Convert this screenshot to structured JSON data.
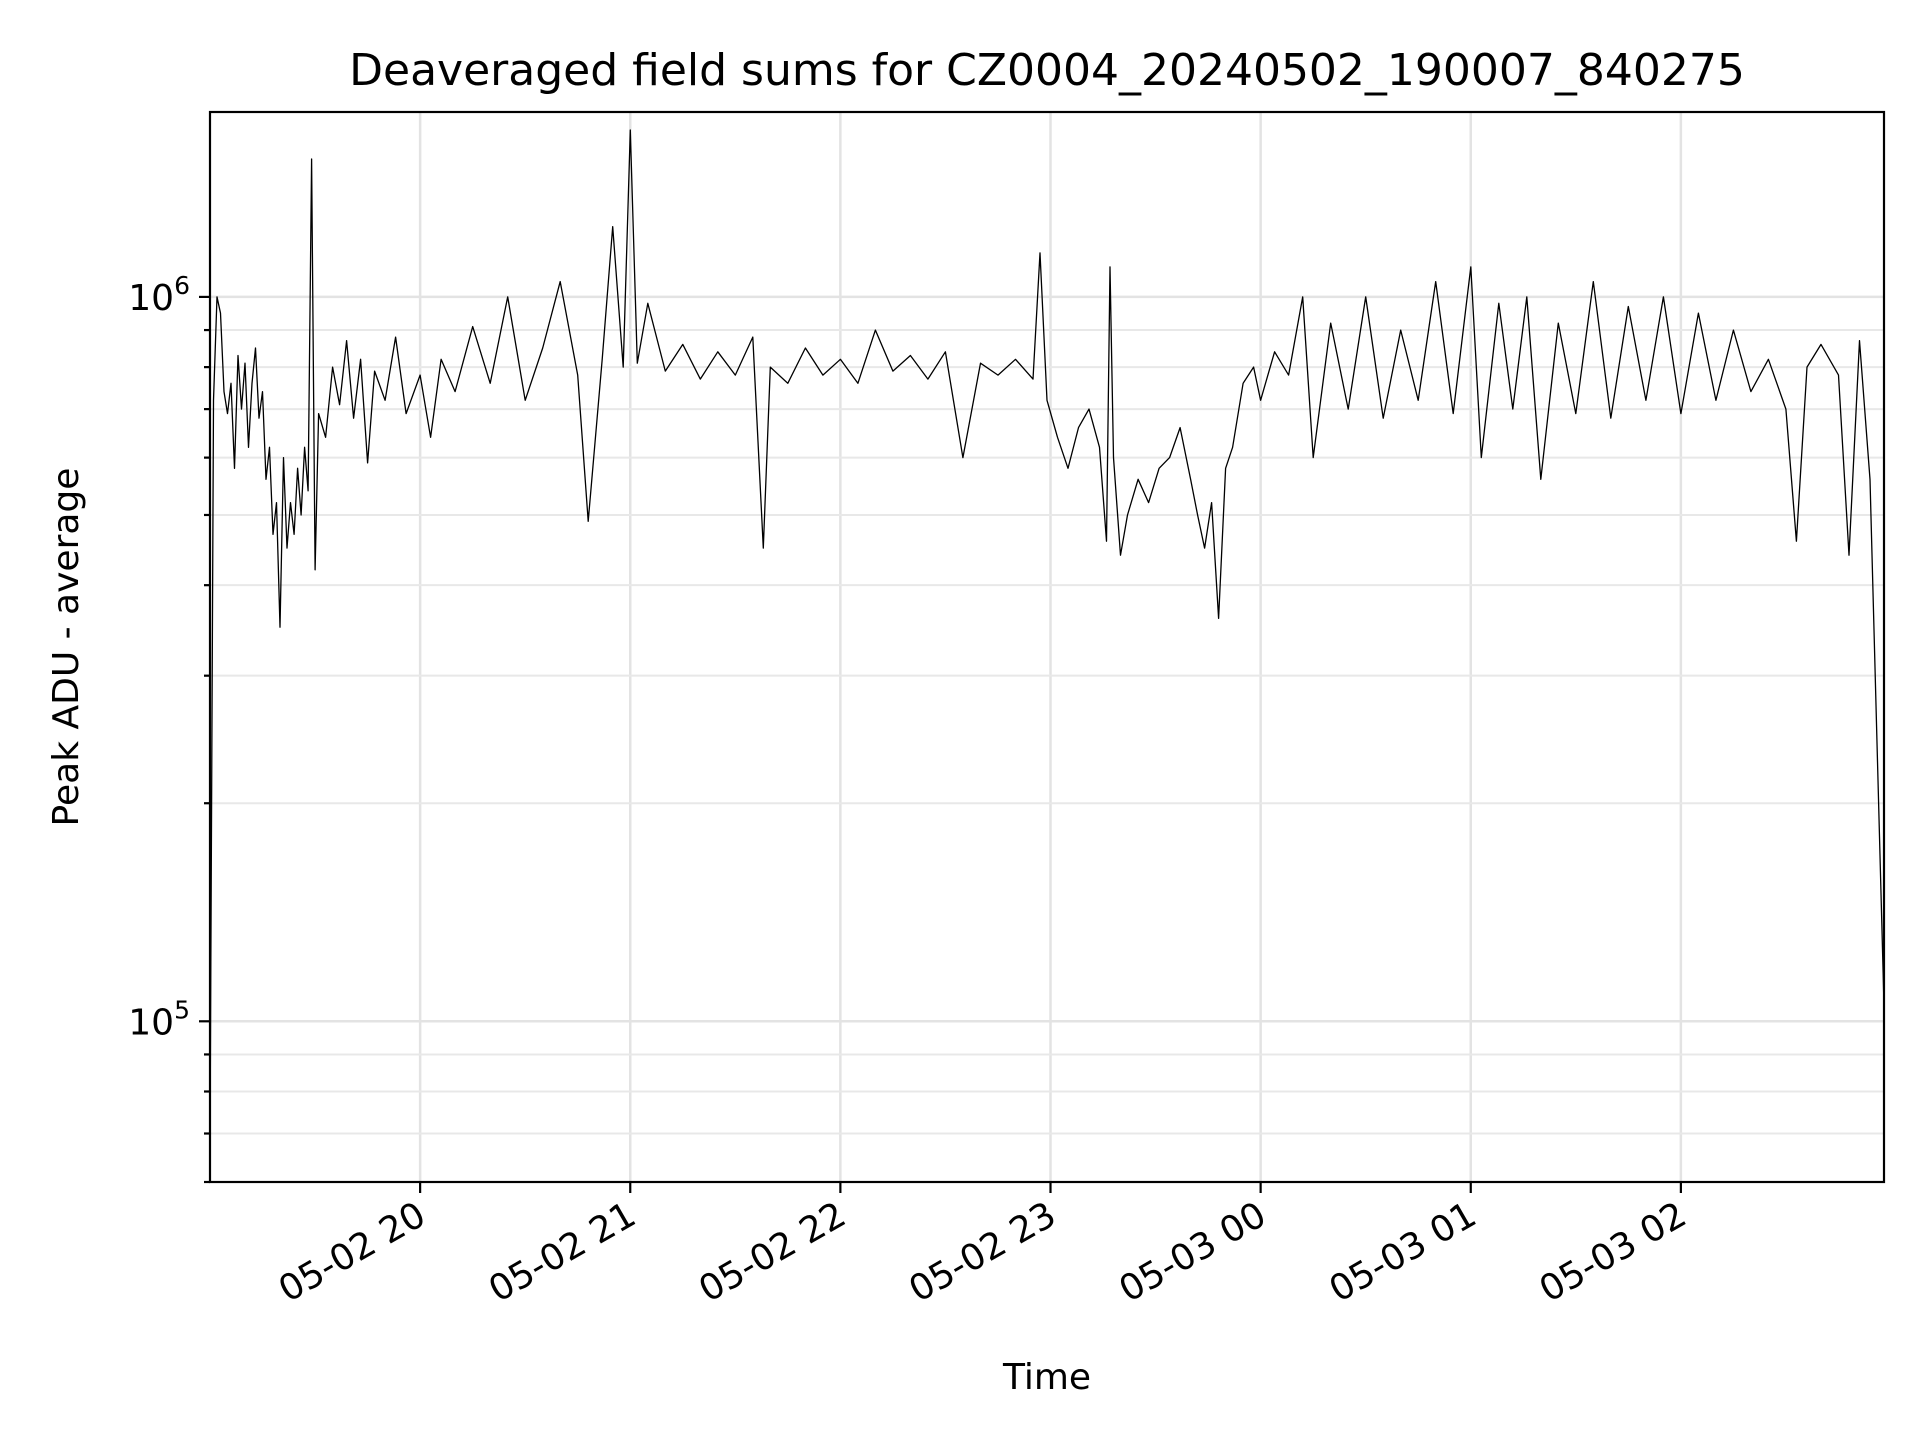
{
  "chart_data": {
    "type": "line",
    "title": "Deaveraged field sums for CZ0004_20240502_190007_840275",
    "xlabel": "Time",
    "ylabel": "Peak ADU - average",
    "x_type": "datetime",
    "xlim": [
      "2024-05-02 19:00",
      "2024-05-03 02:58"
    ],
    "yscale": "log",
    "ylim": [
      60000,
      1800000
    ],
    "grid": true,
    "x_tick_values": [
      "2024-05-02 20:00",
      "2024-05-02 21:00",
      "2024-05-02 22:00",
      "2024-05-02 23:00",
      "2024-05-03 00:00",
      "2024-05-03 01:00",
      "2024-05-03 02:00"
    ],
    "x_tick_labels": [
      "05-02 20",
      "05-02 21",
      "05-02 22",
      "05-02 23",
      "05-03 00",
      "05-03 01",
      "05-03 02"
    ],
    "y_ticks": [
      {
        "value": 100000,
        "base": "10",
        "exp": "5"
      },
      {
        "value": 1000000,
        "base": "10",
        "exp": "6"
      }
    ],
    "series": [
      {
        "color": "#000000",
        "points": [
          [
            "2024-05-02 19:00",
            68000
          ],
          [
            "2024-05-02 19:01",
            720000
          ],
          [
            "2024-05-02 19:02",
            1000000
          ],
          [
            "2024-05-02 19:03",
            950000
          ],
          [
            "2024-05-02 19:04",
            740000
          ],
          [
            "2024-05-02 19:05",
            690000
          ],
          [
            "2024-05-02 19:06",
            760000
          ],
          [
            "2024-05-02 19:07",
            580000
          ],
          [
            "2024-05-02 19:08",
            830000
          ],
          [
            "2024-05-02 19:09",
            700000
          ],
          [
            "2024-05-02 19:10",
            810000
          ],
          [
            "2024-05-02 19:11",
            620000
          ],
          [
            "2024-05-02 19:12",
            760000
          ],
          [
            "2024-05-02 19:13",
            850000
          ],
          [
            "2024-05-02 19:14",
            680000
          ],
          [
            "2024-05-02 19:15",
            740000
          ],
          [
            "2024-05-02 19:16",
            560000
          ],
          [
            "2024-05-02 19:17",
            620000
          ],
          [
            "2024-05-02 19:18",
            470000
          ],
          [
            "2024-05-02 19:19",
            520000
          ],
          [
            "2024-05-02 19:20",
            350000
          ],
          [
            "2024-05-02 19:21",
            600000
          ],
          [
            "2024-05-02 19:22",
            450000
          ],
          [
            "2024-05-02 19:23",
            520000
          ],
          [
            "2024-05-02 19:24",
            470000
          ],
          [
            "2024-05-02 19:25",
            580000
          ],
          [
            "2024-05-02 19:26",
            500000
          ],
          [
            "2024-05-02 19:27",
            620000
          ],
          [
            "2024-05-02 19:28",
            540000
          ],
          [
            "2024-05-02 19:29",
            1550000
          ],
          [
            "2024-05-02 19:30",
            420000
          ],
          [
            "2024-05-02 19:31",
            690000
          ],
          [
            "2024-05-02 19:33",
            640000
          ],
          [
            "2024-05-02 19:35",
            800000
          ],
          [
            "2024-05-02 19:37",
            710000
          ],
          [
            "2024-05-02 19:39",
            870000
          ],
          [
            "2024-05-02 19:41",
            680000
          ],
          [
            "2024-05-02 19:43",
            820000
          ],
          [
            "2024-05-02 19:45",
            590000
          ],
          [
            "2024-05-02 19:47",
            790000
          ],
          [
            "2024-05-02 19:50",
            720000
          ],
          [
            "2024-05-02 19:53",
            880000
          ],
          [
            "2024-05-02 19:56",
            690000
          ],
          [
            "2024-05-02 20:00",
            780000
          ],
          [
            "2024-05-02 20:03",
            640000
          ],
          [
            "2024-05-02 20:06",
            820000
          ],
          [
            "2024-05-02 20:10",
            740000
          ],
          [
            "2024-05-02 20:15",
            910000
          ],
          [
            "2024-05-02 20:20",
            760000
          ],
          [
            "2024-05-02 20:25",
            1000000
          ],
          [
            "2024-05-02 20:30",
            720000
          ],
          [
            "2024-05-02 20:35",
            850000
          ],
          [
            "2024-05-02 20:40",
            1050000
          ],
          [
            "2024-05-02 20:45",
            780000
          ],
          [
            "2024-05-02 20:48",
            490000
          ],
          [
            "2024-05-02 20:52",
            820000
          ],
          [
            "2024-05-02 20:55",
            1250000
          ],
          [
            "2024-05-02 20:58",
            800000
          ],
          [
            "2024-05-02 21:00",
            1700000
          ],
          [
            "2024-05-02 21:02",
            810000
          ],
          [
            "2024-05-02 21:05",
            980000
          ],
          [
            "2024-05-02 21:10",
            790000
          ],
          [
            "2024-05-02 21:15",
            860000
          ],
          [
            "2024-05-02 21:20",
            770000
          ],
          [
            "2024-05-02 21:25",
            840000
          ],
          [
            "2024-05-02 21:30",
            780000
          ],
          [
            "2024-05-02 21:35",
            880000
          ],
          [
            "2024-05-02 21:38",
            450000
          ],
          [
            "2024-05-02 21:40",
            800000
          ],
          [
            "2024-05-02 21:45",
            760000
          ],
          [
            "2024-05-02 21:50",
            850000
          ],
          [
            "2024-05-02 21:55",
            780000
          ],
          [
            "2024-05-02 22:00",
            820000
          ],
          [
            "2024-05-02 22:05",
            760000
          ],
          [
            "2024-05-02 22:10",
            900000
          ],
          [
            "2024-05-02 22:15",
            790000
          ],
          [
            "2024-05-02 22:20",
            830000
          ],
          [
            "2024-05-02 22:25",
            770000
          ],
          [
            "2024-05-02 22:30",
            840000
          ],
          [
            "2024-05-02 22:35",
            600000
          ],
          [
            "2024-05-02 22:40",
            810000
          ],
          [
            "2024-05-02 22:45",
            780000
          ],
          [
            "2024-05-02 22:50",
            820000
          ],
          [
            "2024-05-02 22:55",
            770000
          ],
          [
            "2024-05-02 22:57",
            1150000
          ],
          [
            "2024-05-02 22:59",
            720000
          ],
          [
            "2024-05-02 23:02",
            640000
          ],
          [
            "2024-05-02 23:05",
            580000
          ],
          [
            "2024-05-02 23:08",
            660000
          ],
          [
            "2024-05-02 23:11",
            700000
          ],
          [
            "2024-05-02 23:14",
            620000
          ],
          [
            "2024-05-02 23:16",
            460000
          ],
          [
            "2024-05-02 23:17",
            1100000
          ],
          [
            "2024-05-02 23:18",
            600000
          ],
          [
            "2024-05-02 23:20",
            440000
          ],
          [
            "2024-05-02 23:22",
            500000
          ],
          [
            "2024-05-02 23:25",
            560000
          ],
          [
            "2024-05-02 23:28",
            520000
          ],
          [
            "2024-05-02 23:31",
            580000
          ],
          [
            "2024-05-02 23:34",
            600000
          ],
          [
            "2024-05-02 23:37",
            660000
          ],
          [
            "2024-05-02 23:40",
            560000
          ],
          [
            "2024-05-02 23:42",
            500000
          ],
          [
            "2024-05-02 23:44",
            450000
          ],
          [
            "2024-05-02 23:46",
            520000
          ],
          [
            "2024-05-02 23:48",
            360000
          ],
          [
            "2024-05-02 23:50",
            580000
          ],
          [
            "2024-05-02 23:52",
            620000
          ],
          [
            "2024-05-02 23:55",
            760000
          ],
          [
            "2024-05-02 23:58",
            800000
          ],
          [
            "2024-05-03 00:00",
            720000
          ],
          [
            "2024-05-03 00:04",
            840000
          ],
          [
            "2024-05-03 00:08",
            780000
          ],
          [
            "2024-05-03 00:12",
            1000000
          ],
          [
            "2024-05-03 00:15",
            600000
          ],
          [
            "2024-05-03 00:20",
            920000
          ],
          [
            "2024-05-03 00:25",
            700000
          ],
          [
            "2024-05-03 00:30",
            1000000
          ],
          [
            "2024-05-03 00:35",
            680000
          ],
          [
            "2024-05-03 00:40",
            900000
          ],
          [
            "2024-05-03 00:45",
            720000
          ],
          [
            "2024-05-03 00:50",
            1050000
          ],
          [
            "2024-05-03 00:55",
            690000
          ],
          [
            "2024-05-03 01:00",
            1100000
          ],
          [
            "2024-05-03 01:03",
            600000
          ],
          [
            "2024-05-03 01:08",
            980000
          ],
          [
            "2024-05-03 01:12",
            700000
          ],
          [
            "2024-05-03 01:16",
            1000000
          ],
          [
            "2024-05-03 01:20",
            560000
          ],
          [
            "2024-05-03 01:25",
            920000
          ],
          [
            "2024-05-03 01:30",
            690000
          ],
          [
            "2024-05-03 01:35",
            1050000
          ],
          [
            "2024-05-03 01:40",
            680000
          ],
          [
            "2024-05-03 01:45",
            970000
          ],
          [
            "2024-05-03 01:50",
            720000
          ],
          [
            "2024-05-03 01:55",
            1000000
          ],
          [
            "2024-05-03 02:00",
            690000
          ],
          [
            "2024-05-03 02:05",
            950000
          ],
          [
            "2024-05-03 02:10",
            720000
          ],
          [
            "2024-05-03 02:15",
            900000
          ],
          [
            "2024-05-03 02:20",
            740000
          ],
          [
            "2024-05-03 02:25",
            820000
          ],
          [
            "2024-05-03 02:30",
            700000
          ],
          [
            "2024-05-03 02:33",
            460000
          ],
          [
            "2024-05-03 02:36",
            800000
          ],
          [
            "2024-05-03 02:40",
            860000
          ],
          [
            "2024-05-03 02:45",
            780000
          ],
          [
            "2024-05-03 02:48",
            440000
          ],
          [
            "2024-05-03 02:51",
            870000
          ],
          [
            "2024-05-03 02:54",
            560000
          ],
          [
            "2024-05-03 02:58",
            105000
          ]
        ]
      }
    ]
  }
}
